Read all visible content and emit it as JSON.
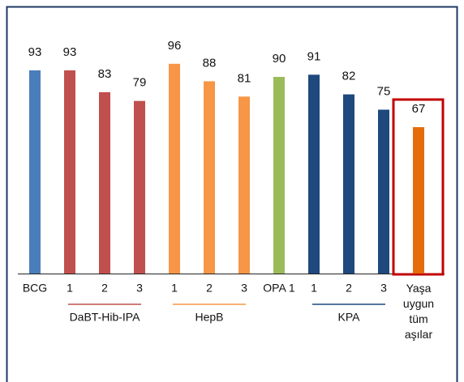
{
  "chart_data": {
    "type": "bar",
    "categories": [
      "BCG",
      "1",
      "2",
      "3",
      "1",
      "2",
      "3",
      "OPA 1",
      "1",
      "2",
      "3",
      "Yaşa uygun tüm aşılar"
    ],
    "values": [
      93,
      93,
      83,
      79,
      96,
      88,
      81,
      90,
      91,
      82,
      75,
      67
    ],
    "colors": [
      "#4a7ebb",
      "#c0504d",
      "#c0504d",
      "#c0504d",
      "#f79646",
      "#f79646",
      "#f79646",
      "#9bbb59",
      "#1f497d",
      "#1f497d",
      "#1f497d",
      "#e46c0a"
    ],
    "groups": [
      {
        "label": "DaBT-Hib-IPA",
        "color": "#c0504d"
      },
      {
        "label": "HepB",
        "color": "#f79646"
      },
      {
        "label": "KPA",
        "color": "#1f497d"
      }
    ],
    "highlight_color": "#c00000"
  }
}
